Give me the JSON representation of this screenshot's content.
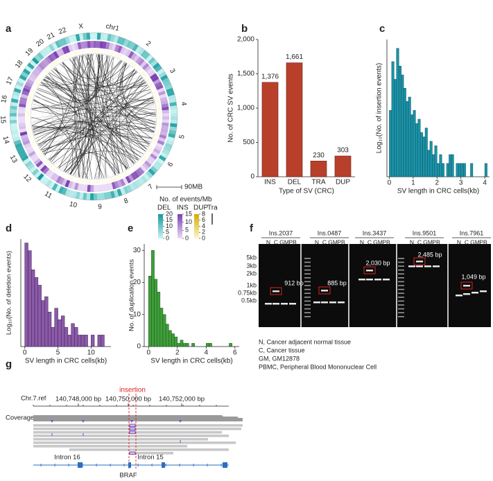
{
  "panel_labels": [
    "a",
    "b",
    "c",
    "d",
    "e",
    "f",
    "g"
  ],
  "circos": {
    "chromosomes": [
      "chr1",
      "2",
      "3",
      "4",
      "5",
      "6",
      "7",
      "8",
      "9",
      "10",
      "11",
      "12",
      "13",
      "14",
      "15",
      "16",
      "17",
      "18",
      "19",
      "20",
      "21",
      "22",
      "X"
    ],
    "scale_bar": "90MB",
    "legend_title": "No. of events/Mb",
    "tracks": [
      {
        "name": "DEL",
        "color": "#12999c",
        "light": "#c9f4f3",
        "ticks": [
          20,
          15,
          10,
          5,
          0
        ]
      },
      {
        "name": "INS",
        "color": "#7a3fb0",
        "light": "#ecdcf7",
        "ticks": [
          15,
          10,
          5,
          0
        ]
      },
      {
        "name": "DUP",
        "color": "#d4ac00",
        "light": "#fff6c8",
        "ticks": [
          8,
          6,
          4,
          2,
          0
        ]
      },
      {
        "name": "Tra",
        "color": "#000000"
      }
    ]
  },
  "chart_data": [
    {
      "type": "bar",
      "categories": [
        "INS",
        "DEL",
        "TRA",
        "DUP"
      ],
      "values": [
        1376,
        1661,
        230,
        303
      ],
      "value_labels": [
        "1,376",
        "1,661",
        "230",
        "303"
      ],
      "color": "#b8402b",
      "ylim": [
        0,
        2000
      ],
      "yticks": [
        0,
        500,
        {
          "value": 1000,
          "label": "1,000"
        },
        {
          "value": 1500,
          "label": "1,500"
        },
        {
          "value": 2000,
          "label": "2,000"
        }
      ],
      "ylabel": "No. of CRC SV events",
      "xlabel": "Type of SV (CRC)"
    },
    {
      "type": "histogram",
      "color": "#1c93a8",
      "edgecolor": "#0b4f5c",
      "bins": [
        0,
        0.1,
        0.2,
        0.3,
        0.4,
        0.5,
        0.6,
        0.7,
        0.8,
        0.9,
        1.0,
        1.1,
        1.2,
        1.3,
        1.4,
        1.5,
        1.6,
        1.7,
        1.8,
        1.9,
        2.0,
        2.1,
        2.2,
        2.3,
        2.4,
        2.5,
        2.6,
        2.7,
        2.8,
        2.9,
        3.0,
        3.1,
        3.2,
        3.3,
        3.4,
        3.5,
        3.6,
        3.7,
        3.8,
        3.9,
        4.0,
        4.1
      ],
      "values": [
        1.5,
        2.6,
        2.2,
        2.9,
        2.5,
        2.3,
        2.0,
        1.7,
        1.8,
        1.4,
        1.5,
        1.2,
        1.3,
        1.0,
        0.9,
        1.1,
        0.6,
        0.8,
        0.5,
        0.7,
        0.3,
        0.5,
        0.3,
        0,
        0.3,
        0.5,
        0.5,
        0,
        0.3,
        0.3,
        0.3,
        0.3,
        0,
        0,
        0.3,
        0,
        0,
        0,
        0,
        0,
        0.3
      ],
      "xlim": [
        -0.1,
        4.2
      ],
      "xticks": [
        0,
        1,
        2,
        3,
        4
      ],
      "ylim": [
        0,
        3.1
      ],
      "ylabel": "Log₁₀(No. of insertion events)",
      "xlabel": "SV length in CRC cells(kb)"
    },
    {
      "type": "histogram",
      "color": "#8a5aa8",
      "edgecolor": "#3d1f52",
      "bins": [
        0,
        0.5,
        1,
        1.5,
        2,
        2.5,
        3,
        3.5,
        4,
        4.5,
        5,
        5.5,
        6,
        6.5,
        7,
        7.5,
        8,
        8.5,
        9,
        9.5,
        10,
        10.5,
        11,
        11.5,
        12
      ],
      "values": [
        2.7,
        2.5,
        2.0,
        1.8,
        1.6,
        1.2,
        1.3,
        0.9,
        0.5,
        1.0,
        0.7,
        0.8,
        0.5,
        0.3,
        0.6,
        0.5,
        0.3,
        0.3,
        0.3,
        0,
        0.3,
        0,
        0.3,
        0.3
      ],
      "xlim": [
        -0.6,
        13
      ],
      "xticks": [
        0,
        5,
        10
      ],
      "ylim": [
        0,
        2.8
      ],
      "ylabel": "Log₁₀(No. of deletion events)",
      "xlabel": "SV length in CRC cells(kb)"
    },
    {
      "type": "histogram",
      "color": "#3f9f3a",
      "edgecolor": "#1d4f1a",
      "bins": [
        0,
        0.2,
        0.4,
        0.6,
        0.8,
        1.0,
        1.2,
        1.4,
        1.6,
        1.8,
        2.0,
        2.2,
        2.4,
        2.6,
        2.8,
        3.0,
        3.2,
        3.4,
        3.6,
        3.8,
        4.0,
        4.2,
        4.4,
        4.6,
        4.8,
        5.0,
        5.2,
        5.4,
        5.6,
        5.8
      ],
      "values": [
        22,
        30,
        21,
        17,
        12,
        10,
        7,
        5,
        4,
        3,
        1,
        2,
        1,
        1,
        0,
        1,
        0,
        0,
        0,
        0,
        1,
        1,
        0,
        0,
        0,
        0,
        0,
        0,
        1
      ],
      "xlim": [
        -0.3,
        6.3
      ],
      "xticks": [
        0,
        2,
        4,
        6
      ],
      "ylim": [
        0,
        32
      ],
      "yticks": [
        0,
        10,
        20,
        30
      ],
      "ylabel": "No. of duplication events",
      "xlabel": "SV length in CRC cells(kb)"
    }
  ],
  "gel": {
    "samples": [
      {
        "name": "Ins.2037",
        "band": "912 bp"
      },
      {
        "name": "Ins.0487",
        "band": "885 bp"
      },
      {
        "name": "Ins.3437",
        "band": "2,030 bp"
      },
      {
        "name": "Ins.9501",
        "band": "2,485 bp"
      },
      {
        "name": "Ins.7961",
        "band": "1,049 bp"
      }
    ],
    "lanes": [
      "N",
      "C",
      "GM",
      "PB"
    ],
    "size_markers": [
      "5kb",
      "3kb",
      "2kb",
      "1kb",
      "0.75kb",
      "0.5kb"
    ],
    "legend": [
      "N, Cancer adjacent normal tissue",
      "C, Cancer tissue",
      "GM, GM12878",
      "PBMC, Peripheral Blood Mononuclear Cell"
    ]
  },
  "browser": {
    "reference": "Chr.7.ref",
    "positions": [
      "140,748,000 bp",
      "140,750,000 bp",
      "140,752,000 bp"
    ],
    "insertion": "insertion",
    "track": "Coverage",
    "introns": [
      "Intron 16",
      "Intron 15"
    ],
    "gene": "BRAF"
  }
}
